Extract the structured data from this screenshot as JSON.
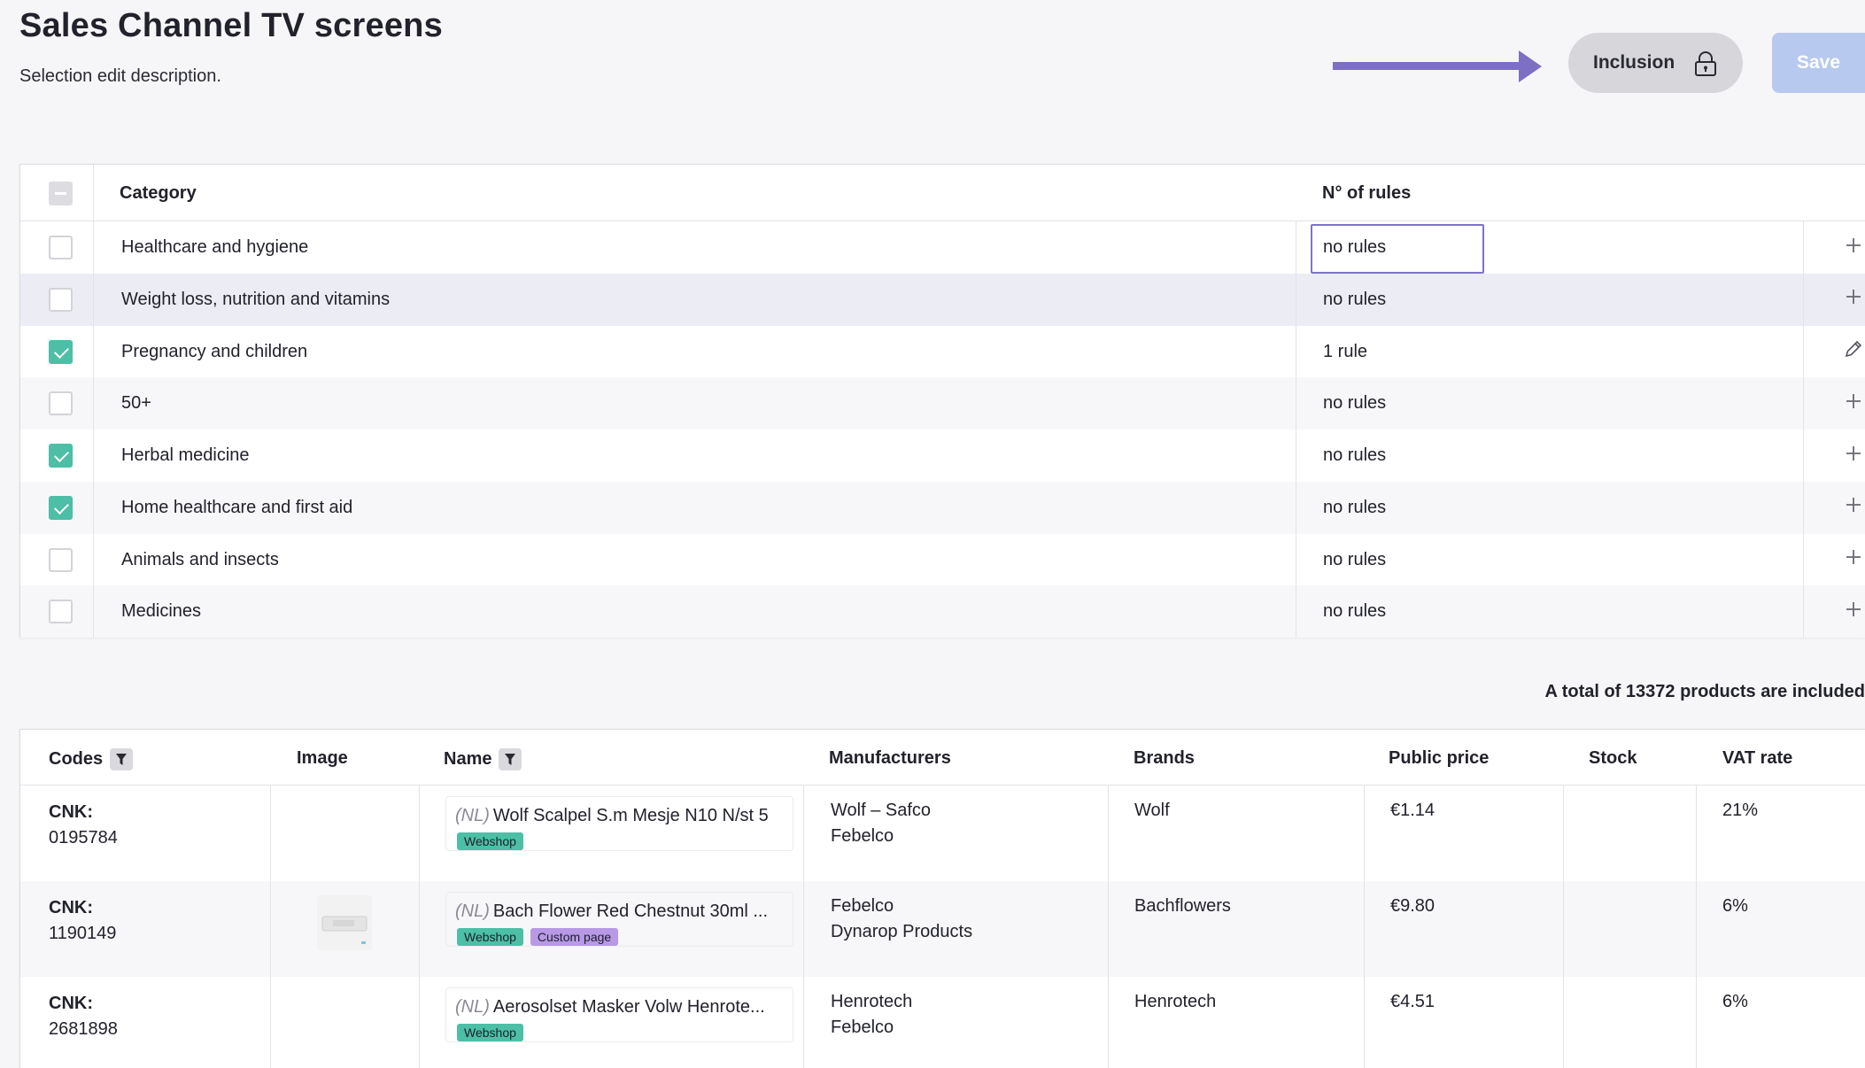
{
  "header": {
    "title": "Sales Channel TV screens",
    "description": "Selection edit description.",
    "inclusion_label": "Inclusion",
    "save_label": "Save",
    "accent_color": "#7d6fc4"
  },
  "categories": {
    "col_category": "Category",
    "col_rules": "N° of rules",
    "rows": [
      {
        "name": "Healthcare and hygiene",
        "rules": "no rules",
        "checked": false,
        "action": "plus-icon"
      },
      {
        "name": "Weight loss, nutrition and vitamins",
        "rules": "no rules",
        "checked": false,
        "action": "plus-icon"
      },
      {
        "name": "Pregnancy and children",
        "rules": "1 rule",
        "checked": true,
        "action": "pencil-icon"
      },
      {
        "name": "50+",
        "rules": "no rules",
        "checked": false,
        "action": "plus-icon"
      },
      {
        "name": "Herbal medicine",
        "rules": "no rules",
        "checked": true,
        "action": "plus-icon"
      },
      {
        "name": "Home healthcare and first aid",
        "rules": "no rules",
        "checked": true,
        "action": "plus-icon"
      },
      {
        "name": "Animals and insects",
        "rules": "no rules",
        "checked": false,
        "action": "plus-icon"
      },
      {
        "name": "Medicines",
        "rules": "no rules",
        "checked": false,
        "action": "plus-icon"
      }
    ]
  },
  "total_text": "A total of 13372 products are included",
  "products": {
    "columns": [
      "Codes",
      "Image",
      "Name",
      "Manufacturers",
      "Brands",
      "Public price",
      "Stock",
      "VAT rate"
    ],
    "rows": [
      {
        "cnk_label": "CNK:",
        "cnk": "0195784",
        "lang": "(NL)",
        "name": "Wolf Scalpel S.m Mesje N10 N/st 5",
        "tags": [
          "Webshop"
        ],
        "manufacturer1": "Wolf – Safco",
        "manufacturer2": "Febelco",
        "brand": "Wolf",
        "price": "€1.14",
        "stock": "",
        "vat": "21%"
      },
      {
        "cnk_label": "CNK:",
        "cnk": "1190149",
        "lang": "(NL)",
        "name": "Bach Flower Red Chestnut 30ml ...",
        "tags": [
          "Webshop",
          "Custom page"
        ],
        "manufacturer1": "Febelco",
        "manufacturer2": "Dynarop Products",
        "brand": "Bachflowers",
        "price": "€9.80",
        "stock": "",
        "vat": "6%"
      },
      {
        "cnk_label": "CNK:",
        "cnk": "2681898",
        "lang": "(NL)",
        "name": "Aerosolset Masker Volw Henrote...",
        "tags": [
          "Webshop"
        ],
        "manufacturer1": "Henrotech",
        "manufacturer2": "Febelco",
        "brand": "Henrotech",
        "price": "€4.51",
        "stock": "",
        "vat": "6%"
      }
    ]
  }
}
